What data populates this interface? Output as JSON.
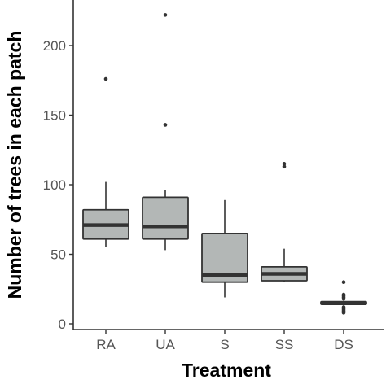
{
  "chart_data": {
    "type": "box",
    "xlabel": "Treatment",
    "ylabel": "Number of trees in each patch",
    "ylim": [
      0,
      235
    ],
    "yticks": [
      0,
      50,
      100,
      150,
      200
    ],
    "grid": false,
    "colors": {
      "box_fill": "#b3b7b6",
      "box_stroke": "#333333",
      "axis": "#333333",
      "tick_label": "#555555"
    },
    "categories": [
      "RA",
      "UA",
      "S",
      "SS",
      "DS"
    ],
    "boxes": [
      {
        "category": "RA",
        "whisker_low": 55,
        "q1": 61,
        "median": 71,
        "q3": 82,
        "whisker_high": 102,
        "outliers": [
          176
        ]
      },
      {
        "category": "UA",
        "whisker_low": 53,
        "q1": 61,
        "median": 70,
        "q3": 91,
        "whisker_high": 96,
        "outliers": [
          222,
          143
        ]
      },
      {
        "category": "S",
        "whisker_low": 19,
        "q1": 30,
        "median": 35,
        "q3": 65,
        "whisker_high": 89,
        "outliers": []
      },
      {
        "category": "SS",
        "whisker_low": 30,
        "q1": 31,
        "median": 36,
        "q3": 41,
        "whisker_high": 54,
        "outliers": [
          115,
          113
        ]
      },
      {
        "category": "DS",
        "whisker_low": 14,
        "q1": 14,
        "median": 15,
        "q3": 16,
        "whisker_high": 16,
        "outliers": [
          30,
          21,
          20,
          19,
          18,
          12,
          11,
          10,
          9,
          8
        ]
      }
    ]
  }
}
